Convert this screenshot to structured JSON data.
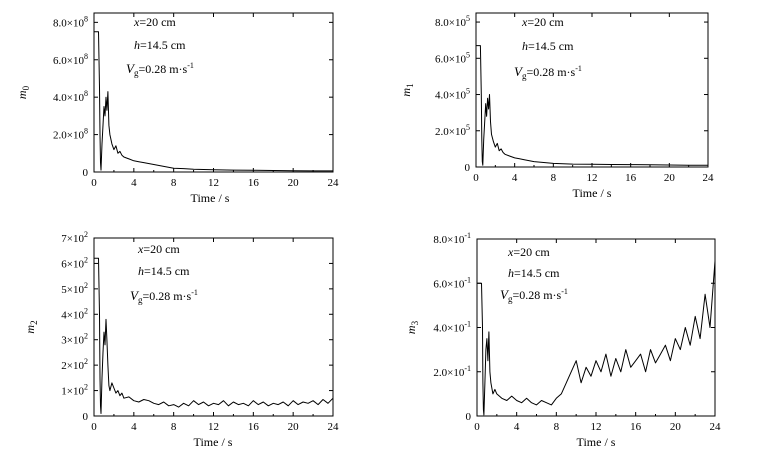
{
  "chart_data": [
    {
      "type": "line",
      "panel": "top-left",
      "xlabel": "Time / s",
      "ylabel": "m",
      "ylabel_sub": "0",
      "xlim": [
        0,
        24
      ],
      "ylim": [
        0,
        850000000
      ],
      "xticks": [
        0,
        4,
        8,
        12,
        16,
        20,
        24
      ],
      "yticks": [
        {
          "v": 0,
          "m": "0",
          "e": ""
        },
        {
          "v": 200000000,
          "m": "2.0×10",
          "e": "8"
        },
        {
          "v": 400000000,
          "m": "4.0×10",
          "e": "8"
        },
        {
          "v": 600000000,
          "m": "6.0×10",
          "e": "8"
        },
        {
          "v": 800000000,
          "m": "8.0×10",
          "e": "8"
        }
      ],
      "annotation": {
        "x_label": "x",
        "x_value": "=20 cm",
        "h_label": "h",
        "h_value": "=14.5 cm",
        "v_label": "V",
        "v_sub": "g",
        "v_value": "=0.28 m·s",
        "v_exp": "-1"
      },
      "series": [
        {
          "name": "m0",
          "x": [
            0,
            0.45,
            0.55,
            0.6,
            0.65,
            0.7,
            0.8,
            0.9,
            1.0,
            1.1,
            1.2,
            1.3,
            1.4,
            1.5,
            1.6,
            1.8,
            2.0,
            2.2,
            2.4,
            2.6,
            2.8,
            3.0,
            3.5,
            4,
            4.5,
            5,
            6,
            7,
            8,
            9,
            10,
            12,
            14,
            16,
            18,
            20,
            22,
            24
          ],
          "y": [
            750000000,
            750000000,
            450000000,
            200000000,
            50000000,
            10000000,
            150000000,
            250000000,
            350000000,
            300000000,
            400000000,
            330000000,
            430000000,
            250000000,
            200000000,
            150000000,
            120000000,
            140000000,
            100000000,
            110000000,
            90000000,
            80000000,
            70000000,
            60000000,
            55000000,
            50000000,
            40000000,
            30000000,
            20000000,
            18000000,
            15000000,
            12000000,
            10000000,
            9000000,
            8000000,
            7000000,
            6000000,
            6000000
          ]
        }
      ]
    },
    {
      "type": "line",
      "panel": "top-right",
      "xlabel": "Time / s",
      "ylabel": "m",
      "ylabel_sub": "1",
      "xlim": [
        0,
        24
      ],
      "ylim": [
        0,
        850000
      ],
      "xticks": [
        0,
        4,
        8,
        12,
        16,
        20,
        24
      ],
      "yticks": [
        {
          "v": 0,
          "m": "0",
          "e": ""
        },
        {
          "v": 200000,
          "m": "2.0×10",
          "e": "5"
        },
        {
          "v": 400000,
          "m": "4.0×10",
          "e": "5"
        },
        {
          "v": 600000,
          "m": "6.0×10",
          "e": "5"
        },
        {
          "v": 800000,
          "m": "8.0×10",
          "e": "5"
        }
      ],
      "annotation": {
        "x_label": "x",
        "x_value": "=20 cm",
        "h_label": "h",
        "h_value": "=14.5 cm",
        "v_label": "V",
        "v_sub": "g",
        "v_value": "=0.28 m·s",
        "v_exp": "-1"
      },
      "series": [
        {
          "name": "m1",
          "x": [
            0,
            0.45,
            0.55,
            0.6,
            0.65,
            0.7,
            0.8,
            0.9,
            1.0,
            1.1,
            1.2,
            1.3,
            1.4,
            1.5,
            1.6,
            1.8,
            2.0,
            2.2,
            2.4,
            2.6,
            2.8,
            3.0,
            3.5,
            4,
            4.5,
            5,
            6,
            7,
            8,
            9,
            10,
            12,
            14,
            16,
            18,
            20,
            22,
            24
          ],
          "y": [
            670000,
            670000,
            400000,
            150000,
            30000,
            10000,
            150000,
            250000,
            350000,
            280000,
            380000,
            320000,
            400000,
            250000,
            180000,
            140000,
            110000,
            130000,
            90000,
            100000,
            80000,
            70000,
            60000,
            50000,
            45000,
            40000,
            30000,
            25000,
            20000,
            18000,
            16000,
            15000,
            14000,
            13000,
            12000,
            11000,
            10000,
            10000
          ]
        }
      ]
    },
    {
      "type": "line",
      "panel": "bottom-left",
      "xlabel": "Time / s",
      "ylabel": "m",
      "ylabel_sub": "2",
      "xlim": [
        0,
        24
      ],
      "ylim": [
        0,
        700
      ],
      "xticks": [
        0,
        4,
        8,
        12,
        16,
        20,
        24
      ],
      "yticks": [
        {
          "v": 0,
          "m": "0",
          "e": ""
        },
        {
          "v": 100,
          "m": "1×10",
          "e": "2"
        },
        {
          "v": 200,
          "m": "2×10",
          "e": "2"
        },
        {
          "v": 300,
          "m": "3×10",
          "e": "2"
        },
        {
          "v": 400,
          "m": "4×10",
          "e": "2"
        },
        {
          "v": 500,
          "m": "5×10",
          "e": "2"
        },
        {
          "v": 600,
          "m": "6×10",
          "e": "2"
        },
        {
          "v": 700,
          "m": "7×10",
          "e": "2"
        }
      ],
      "annotation": {
        "x_label": "x",
        "x_value": "=20 cm",
        "h_label": "h",
        "h_value": "=14.5 cm",
        "v_label": "V",
        "v_sub": "g",
        "v_value": "=0.28 m·s",
        "v_exp": "-1"
      },
      "series": [
        {
          "name": "m2",
          "x": [
            0,
            0.45,
            0.55,
            0.6,
            0.65,
            0.7,
            0.8,
            0.9,
            1.0,
            1.1,
            1.2,
            1.3,
            1.4,
            1.5,
            1.6,
            1.8,
            2.0,
            2.2,
            2.4,
            2.6,
            2.8,
            3.0,
            3.5,
            4,
            4.5,
            5,
            5.5,
            6,
            6.5,
            7,
            7.5,
            8,
            8.5,
            9,
            9.5,
            10,
            10.5,
            11,
            11.5,
            12,
            12.5,
            13,
            13.5,
            14,
            14.5,
            15,
            15.5,
            16,
            16.5,
            17,
            17.5,
            18,
            18.5,
            19,
            19.5,
            20,
            20.5,
            21,
            21.5,
            22,
            22.5,
            23,
            23.5,
            24
          ],
          "y": [
            620,
            620,
            400,
            150,
            40,
            10,
            150,
            250,
            330,
            280,
            380,
            300,
            200,
            120,
            100,
            130,
            110,
            90,
            100,
            80,
            90,
            70,
            75,
            60,
            55,
            65,
            60,
            50,
            45,
            55,
            40,
            45,
            35,
            50,
            40,
            60,
            45,
            55,
            40,
            50,
            45,
            60,
            40,
            55,
            45,
            50,
            40,
            60,
            45,
            55,
            40,
            50,
            45,
            55,
            40,
            60,
            45,
            55,
            50,
            60,
            45,
            65,
            50,
            70
          ]
        }
      ]
    },
    {
      "type": "line",
      "panel": "bottom-right",
      "xlabel": "Time / s",
      "ylabel": "m",
      "ylabel_sub": "3",
      "xlim": [
        0,
        24
      ],
      "ylim": [
        0,
        0.8
      ],
      "xticks": [
        0,
        4,
        8,
        12,
        16,
        20,
        24
      ],
      "yticks": [
        {
          "v": 0,
          "m": "0",
          "e": ""
        },
        {
          "v": 0.2,
          "m": "2.0×10",
          "e": "-1"
        },
        {
          "v": 0.4,
          "m": "4.0×10",
          "e": "-1"
        },
        {
          "v": 0.6,
          "m": "6.0×10",
          "e": "-1"
        },
        {
          "v": 0.8,
          "m": "8.0×10",
          "e": "-1"
        }
      ],
      "annotation": {
        "x_label": "x",
        "x_value": "=20 cm",
        "h_label": "h",
        "h_value": "=14.5 cm",
        "v_label": "V",
        "v_sub": "g",
        "v_value": "=0.28 m·s",
        "v_exp": "-1"
      },
      "series": [
        {
          "name": "m3",
          "x": [
            0,
            0.45,
            0.55,
            0.6,
            0.65,
            0.7,
            0.8,
            0.9,
            1.0,
            1.1,
            1.2,
            1.3,
            1.4,
            1.6,
            1.8,
            2.0,
            2.5,
            3.0,
            3.5,
            4,
            4.5,
            5,
            5.5,
            6,
            6.5,
            7,
            7.5,
            8,
            8.5,
            9,
            9.5,
            10,
            10.5,
            11,
            11.5,
            12,
            12.5,
            13,
            13.5,
            14,
            14.5,
            15,
            15.5,
            16,
            16.5,
            17,
            17.5,
            18,
            18.5,
            19,
            19.5,
            20,
            20.5,
            21,
            21.5,
            22,
            22.5,
            23,
            23.5,
            24
          ],
          "y": [
            0.6,
            0.6,
            0.4,
            0.15,
            0.03,
            0.005,
            0.15,
            0.3,
            0.35,
            0.25,
            0.38,
            0.2,
            0.15,
            0.1,
            0.12,
            0.1,
            0.08,
            0.07,
            0.09,
            0.07,
            0.06,
            0.08,
            0.06,
            0.05,
            0.07,
            0.06,
            0.05,
            0.08,
            0.1,
            0.15,
            0.2,
            0.25,
            0.15,
            0.22,
            0.18,
            0.25,
            0.2,
            0.28,
            0.18,
            0.26,
            0.2,
            0.3,
            0.22,
            0.25,
            0.28,
            0.2,
            0.3,
            0.24,
            0.28,
            0.32,
            0.25,
            0.35,
            0.3,
            0.4,
            0.32,
            0.45,
            0.35,
            0.55,
            0.4,
            0.7
          ]
        }
      ]
    }
  ]
}
